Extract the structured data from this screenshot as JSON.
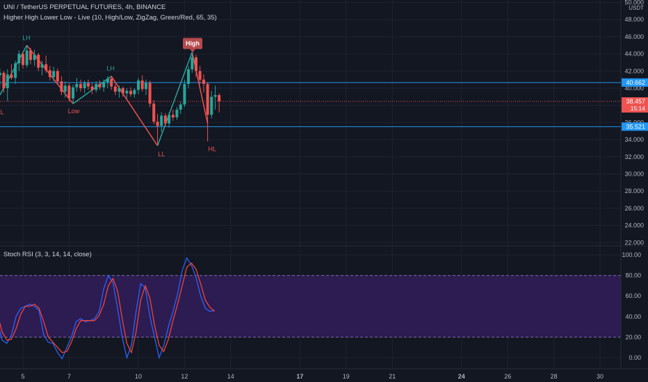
{
  "header": {
    "symbol_line": "UNI / TetherUS PERPETUAL FUTURES, 4h, BINANCE",
    "indicator_line": "Higher High Lower Low - Live (10, High/Low, ZigZag, Green/Red, 65, 35)",
    "rsi_line": "Stoch RSI (3, 3, 14, 14, close)"
  },
  "price_axis": {
    "currency": "USDT",
    "ticks": [
      "50.000",
      "48.000",
      "46.000",
      "44.000",
      "42.000",
      "40.000",
      "38.000",
      "36.000",
      "34.000",
      "32.000",
      "30.000",
      "28.000",
      "26.000",
      "24.000",
      "22.000"
    ],
    "ticks_values": [
      50,
      48,
      46,
      44,
      42,
      40,
      38,
      36,
      34,
      32,
      30,
      28,
      26,
      24,
      22
    ],
    "resistance_label": "40.662",
    "resistance_value": 40.662,
    "support_label": "35.521",
    "support_value": 35.521,
    "last_price_label": "38.457",
    "last_price_value": 38.457,
    "countdown": "15:14"
  },
  "rsi_axis": {
    "ticks": [
      "100.00",
      "80.00",
      "60.00",
      "40.00",
      "20.00",
      "0.00"
    ],
    "ticks_values": [
      100,
      80,
      60,
      40,
      20,
      0
    ],
    "band_upper": 80,
    "band_lower": 20
  },
  "time_axis": {
    "ticks": [
      {
        "label": "5",
        "day": 5,
        "bold": false
      },
      {
        "label": "7",
        "day": 7,
        "bold": false
      },
      {
        "label": "10",
        "day": 10,
        "bold": false
      },
      {
        "label": "12",
        "day": 12,
        "bold": false
      },
      {
        "label": "14",
        "day": 14,
        "bold": false
      },
      {
        "label": "17",
        "day": 17,
        "bold": true
      },
      {
        "label": "19",
        "day": 19,
        "bold": false
      },
      {
        "label": "21",
        "day": 21,
        "bold": false
      },
      {
        "label": "24",
        "day": 24,
        "bold": true
      },
      {
        "label": "26",
        "day": 26,
        "bold": false
      },
      {
        "label": "28",
        "day": 28,
        "bold": false
      },
      {
        "label": "30",
        "day": 30,
        "bold": false
      }
    ]
  },
  "zigzag_labels": [
    {
      "text": "HL",
      "day": 4.0,
      "price": 38.1,
      "color": "#ef5350",
      "pos": "below"
    },
    {
      "text": "LH",
      "day": 5.15,
      "price": 45.0,
      "color": "#26a69a",
      "pos": "above"
    },
    {
      "text": "Low",
      "day": 7.2,
      "price": 38.2,
      "color": "#ef5350",
      "pos": "below"
    },
    {
      "text": "LH",
      "day": 8.8,
      "price": 41.4,
      "color": "#26a69a",
      "pos": "above"
    },
    {
      "text": "LL",
      "day": 11.0,
      "price": 33.2,
      "color": "#ef5350",
      "pos": "below"
    },
    {
      "text": "HL",
      "day": 13.2,
      "price": 33.8,
      "color": "#ef5350",
      "pos": "below"
    }
  ],
  "high_badge": {
    "text": "High",
    "day": 12.35,
    "price": 44.0,
    "color": "#b54a4c"
  },
  "colors": {
    "background": "#131722",
    "grid": "#1f2330",
    "up": "#26a69a",
    "down": "#ef5350",
    "level_line": "#2196f3",
    "rsi_k": "#2962ff",
    "rsi_d": "#f44336",
    "rsi_band": "#2c1c51"
  },
  "chart_data": {
    "type": "candlestick",
    "candles": [
      {
        "day": 4.0,
        "o": 41.5,
        "h": 42.3,
        "l": 40.2,
        "c": 41.8
      },
      {
        "day": 4.17,
        "o": 41.8,
        "h": 42.0,
        "l": 39.5,
        "c": 40.0
      },
      {
        "day": 4.33,
        "o": 40.0,
        "h": 42.2,
        "l": 38.5,
        "c": 41.6
      },
      {
        "day": 4.5,
        "o": 41.6,
        "h": 42.8,
        "l": 41.0,
        "c": 41.2
      },
      {
        "day": 4.67,
        "o": 41.2,
        "h": 43.2,
        "l": 40.5,
        "c": 42.9
      },
      {
        "day": 4.83,
        "o": 42.9,
        "h": 44.4,
        "l": 42.0,
        "c": 44.0
      },
      {
        "day": 5.0,
        "o": 44.0,
        "h": 44.3,
        "l": 42.3,
        "c": 42.7
      },
      {
        "day": 5.17,
        "o": 42.7,
        "h": 45.0,
        "l": 42.4,
        "c": 44.4
      },
      {
        "day": 5.33,
        "o": 44.4,
        "h": 44.7,
        "l": 42.8,
        "c": 43.3
      },
      {
        "day": 5.5,
        "o": 43.3,
        "h": 44.5,
        "l": 42.6,
        "c": 43.9
      },
      {
        "day": 5.67,
        "o": 43.9,
        "h": 44.1,
        "l": 42.0,
        "c": 42.4
      },
      {
        "day": 5.83,
        "o": 42.4,
        "h": 43.2,
        "l": 41.5,
        "c": 42.8
      },
      {
        "day": 6.0,
        "o": 42.8,
        "h": 43.8,
        "l": 41.8,
        "c": 42.1
      },
      {
        "day": 6.17,
        "o": 42.1,
        "h": 42.6,
        "l": 40.9,
        "c": 41.3
      },
      {
        "day": 6.33,
        "o": 41.3,
        "h": 42.5,
        "l": 40.8,
        "c": 42.0
      },
      {
        "day": 6.5,
        "o": 42.0,
        "h": 42.3,
        "l": 40.4,
        "c": 40.8
      },
      {
        "day": 6.67,
        "o": 40.8,
        "h": 41.4,
        "l": 39.2,
        "c": 39.6
      },
      {
        "day": 6.83,
        "o": 39.6,
        "h": 40.8,
        "l": 38.9,
        "c": 40.3
      },
      {
        "day": 7.0,
        "o": 40.3,
        "h": 40.6,
        "l": 38.4,
        "c": 38.8
      },
      {
        "day": 7.17,
        "o": 38.8,
        "h": 40.4,
        "l": 38.2,
        "c": 40.1
      },
      {
        "day": 7.33,
        "o": 40.1,
        "h": 41.2,
        "l": 39.6,
        "c": 40.5
      },
      {
        "day": 7.5,
        "o": 40.5,
        "h": 41.0,
        "l": 39.6,
        "c": 40.0
      },
      {
        "day": 7.67,
        "o": 40.0,
        "h": 40.9,
        "l": 39.4,
        "c": 40.6
      },
      {
        "day": 7.83,
        "o": 40.6,
        "h": 41.0,
        "l": 39.8,
        "c": 40.2
      },
      {
        "day": 8.0,
        "o": 40.2,
        "h": 40.6,
        "l": 39.3,
        "c": 39.8
      },
      {
        "day": 8.17,
        "o": 39.8,
        "h": 40.8,
        "l": 39.5,
        "c": 40.5
      },
      {
        "day": 8.33,
        "o": 40.5,
        "h": 40.9,
        "l": 39.8,
        "c": 40.1
      },
      {
        "day": 8.5,
        "o": 40.1,
        "h": 41.0,
        "l": 39.6,
        "c": 40.7
      },
      {
        "day": 8.67,
        "o": 40.7,
        "h": 41.4,
        "l": 40.0,
        "c": 41.1
      },
      {
        "day": 8.83,
        "o": 41.1,
        "h": 41.4,
        "l": 39.8,
        "c": 40.2
      },
      {
        "day": 9.0,
        "o": 40.2,
        "h": 40.5,
        "l": 39.2,
        "c": 39.6
      },
      {
        "day": 9.17,
        "o": 39.6,
        "h": 40.3,
        "l": 38.9,
        "c": 40.0
      },
      {
        "day": 9.33,
        "o": 40.0,
        "h": 40.2,
        "l": 39.0,
        "c": 39.4
      },
      {
        "day": 9.5,
        "o": 39.4,
        "h": 40.0,
        "l": 38.8,
        "c": 39.7
      },
      {
        "day": 9.67,
        "o": 39.7,
        "h": 40.1,
        "l": 39.0,
        "c": 39.3
      },
      {
        "day": 9.83,
        "o": 39.3,
        "h": 40.0,
        "l": 38.9,
        "c": 39.8
      },
      {
        "day": 10.0,
        "o": 39.8,
        "h": 41.2,
        "l": 39.3,
        "c": 40.9
      },
      {
        "day": 10.17,
        "o": 40.9,
        "h": 41.5,
        "l": 39.6,
        "c": 39.9
      },
      {
        "day": 10.33,
        "o": 39.9,
        "h": 41.0,
        "l": 39.2,
        "c": 40.6
      },
      {
        "day": 10.5,
        "o": 40.6,
        "h": 40.9,
        "l": 37.8,
        "c": 38.2
      },
      {
        "day": 10.67,
        "o": 38.2,
        "h": 38.6,
        "l": 35.8,
        "c": 36.1
      },
      {
        "day": 10.83,
        "o": 36.1,
        "h": 37.0,
        "l": 33.4,
        "c": 35.6
      },
      {
        "day": 11.0,
        "o": 35.6,
        "h": 37.2,
        "l": 34.9,
        "c": 36.8
      },
      {
        "day": 11.17,
        "o": 36.8,
        "h": 37.1,
        "l": 35.5,
        "c": 35.9
      },
      {
        "day": 11.33,
        "o": 35.9,
        "h": 37.2,
        "l": 35.4,
        "c": 36.9
      },
      {
        "day": 11.5,
        "o": 36.9,
        "h": 37.5,
        "l": 36.2,
        "c": 36.6
      },
      {
        "day": 11.67,
        "o": 36.6,
        "h": 37.8,
        "l": 36.3,
        "c": 37.5
      },
      {
        "day": 11.83,
        "o": 37.5,
        "h": 38.4,
        "l": 37.0,
        "c": 38.1
      },
      {
        "day": 12.0,
        "o": 38.1,
        "h": 41.0,
        "l": 37.8,
        "c": 40.5
      },
      {
        "day": 12.17,
        "o": 40.5,
        "h": 42.6,
        "l": 40.0,
        "c": 42.2
      },
      {
        "day": 12.33,
        "o": 42.2,
        "h": 44.2,
        "l": 41.8,
        "c": 43.6
      },
      {
        "day": 12.5,
        "o": 43.6,
        "h": 43.9,
        "l": 41.3,
        "c": 42.0
      },
      {
        "day": 12.67,
        "o": 42.0,
        "h": 42.6,
        "l": 40.5,
        "c": 41.0
      },
      {
        "day": 12.83,
        "o": 41.0,
        "h": 41.6,
        "l": 39.5,
        "c": 40.5
      },
      {
        "day": 13.0,
        "o": 40.5,
        "h": 40.7,
        "l": 33.8,
        "c": 36.9
      },
      {
        "day": 13.17,
        "o": 36.9,
        "h": 39.7,
        "l": 36.5,
        "c": 39.0
      },
      {
        "day": 13.33,
        "o": 39.0,
        "h": 40.3,
        "l": 37.5,
        "c": 39.2
      },
      {
        "day": 13.5,
        "o": 39.2,
        "h": 39.4,
        "l": 37.2,
        "c": 38.457
      }
    ],
    "zigzag": [
      {
        "day": 4.0,
        "price": 39.2
      },
      {
        "day": 5.17,
        "price": 45.0
      },
      {
        "day": 7.17,
        "price": 38.2
      },
      {
        "day": 8.83,
        "price": 41.4
      },
      {
        "day": 10.83,
        "price": 33.3
      },
      {
        "day": 12.33,
        "price": 44.2
      },
      {
        "day": 13.0,
        "price": 35.9
      }
    ],
    "stoch_rsi": {
      "k": [
        {
          "day": 3.9,
          "v": 35
        },
        {
          "day": 4.1,
          "v": 17
        },
        {
          "day": 4.3,
          "v": 14
        },
        {
          "day": 4.5,
          "v": 22
        },
        {
          "day": 4.7,
          "v": 40
        },
        {
          "day": 4.9,
          "v": 48
        },
        {
          "day": 5.1,
          "v": 50
        },
        {
          "day": 5.3,
          "v": 52
        },
        {
          "day": 5.5,
          "v": 50
        },
        {
          "day": 5.7,
          "v": 46
        },
        {
          "day": 5.9,
          "v": 22
        },
        {
          "day": 6.1,
          "v": 15
        },
        {
          "day": 6.3,
          "v": 14
        },
        {
          "day": 6.5,
          "v": 5
        },
        {
          "day": 6.7,
          "v": -1
        },
        {
          "day": 6.9,
          "v": 10
        },
        {
          "day": 7.1,
          "v": 20
        },
        {
          "day": 7.3,
          "v": 35
        },
        {
          "day": 7.5,
          "v": 38
        },
        {
          "day": 7.7,
          "v": 35
        },
        {
          "day": 7.9,
          "v": 36
        },
        {
          "day": 8.1,
          "v": 38
        },
        {
          "day": 8.3,
          "v": 45
        },
        {
          "day": 8.5,
          "v": 67
        },
        {
          "day": 8.7,
          "v": 80
        },
        {
          "day": 8.9,
          "v": 73
        },
        {
          "day": 9.1,
          "v": 48
        },
        {
          "day": 9.3,
          "v": 20
        },
        {
          "day": 9.5,
          "v": 0
        },
        {
          "day": 9.7,
          "v": 12
        },
        {
          "day": 9.9,
          "v": 45
        },
        {
          "day": 10.1,
          "v": 72
        },
        {
          "day": 10.3,
          "v": 68
        },
        {
          "day": 10.5,
          "v": 40
        },
        {
          "day": 10.7,
          "v": 20
        },
        {
          "day": 10.9,
          "v": 0
        },
        {
          "day": 11.1,
          "v": 12
        },
        {
          "day": 11.3,
          "v": 30
        },
        {
          "day": 11.5,
          "v": 45
        },
        {
          "day": 11.7,
          "v": 62
        },
        {
          "day": 11.9,
          "v": 85
        },
        {
          "day": 12.1,
          "v": 97
        },
        {
          "day": 12.3,
          "v": 90
        },
        {
          "day": 12.5,
          "v": 78
        },
        {
          "day": 12.7,
          "v": 60
        },
        {
          "day": 12.9,
          "v": 48
        },
        {
          "day": 13.1,
          "v": 45
        },
        {
          "day": 13.3,
          "v": 46
        }
      ],
      "d": [
        {
          "day": 3.9,
          "v": 42
        },
        {
          "day": 4.1,
          "v": 25
        },
        {
          "day": 4.3,
          "v": 17
        },
        {
          "day": 4.5,
          "v": 18
        },
        {
          "day": 4.7,
          "v": 28
        },
        {
          "day": 4.9,
          "v": 42
        },
        {
          "day": 5.1,
          "v": 50
        },
        {
          "day": 5.3,
          "v": 50
        },
        {
          "day": 5.5,
          "v": 52
        },
        {
          "day": 5.7,
          "v": 48
        },
        {
          "day": 5.9,
          "v": 35
        },
        {
          "day": 6.1,
          "v": 20
        },
        {
          "day": 6.3,
          "v": 15
        },
        {
          "day": 6.5,
          "v": 10
        },
        {
          "day": 6.7,
          "v": 5
        },
        {
          "day": 6.9,
          "v": 6
        },
        {
          "day": 7.1,
          "v": 15
        },
        {
          "day": 7.3,
          "v": 28
        },
        {
          "day": 7.5,
          "v": 36
        },
        {
          "day": 7.7,
          "v": 36
        },
        {
          "day": 7.9,
          "v": 36
        },
        {
          "day": 8.1,
          "v": 36
        },
        {
          "day": 8.3,
          "v": 41
        },
        {
          "day": 8.5,
          "v": 52
        },
        {
          "day": 8.7,
          "v": 70
        },
        {
          "day": 8.9,
          "v": 77
        },
        {
          "day": 9.1,
          "v": 65
        },
        {
          "day": 9.3,
          "v": 38
        },
        {
          "day": 9.5,
          "v": 14
        },
        {
          "day": 9.7,
          "v": 5
        },
        {
          "day": 9.9,
          "v": 25
        },
        {
          "day": 10.1,
          "v": 56
        },
        {
          "day": 10.3,
          "v": 70
        },
        {
          "day": 10.5,
          "v": 58
        },
        {
          "day": 10.7,
          "v": 32
        },
        {
          "day": 10.9,
          "v": 12
        },
        {
          "day": 11.1,
          "v": 6
        },
        {
          "day": 11.3,
          "v": 18
        },
        {
          "day": 11.5,
          "v": 36
        },
        {
          "day": 11.7,
          "v": 52
        },
        {
          "day": 11.9,
          "v": 70
        },
        {
          "day": 12.1,
          "v": 88
        },
        {
          "day": 12.3,
          "v": 92
        },
        {
          "day": 12.5,
          "v": 86
        },
        {
          "day": 12.7,
          "v": 72
        },
        {
          "day": 12.9,
          "v": 56
        },
        {
          "day": 13.1,
          "v": 49
        },
        {
          "day": 13.3,
          "v": 45
        }
      ]
    }
  }
}
